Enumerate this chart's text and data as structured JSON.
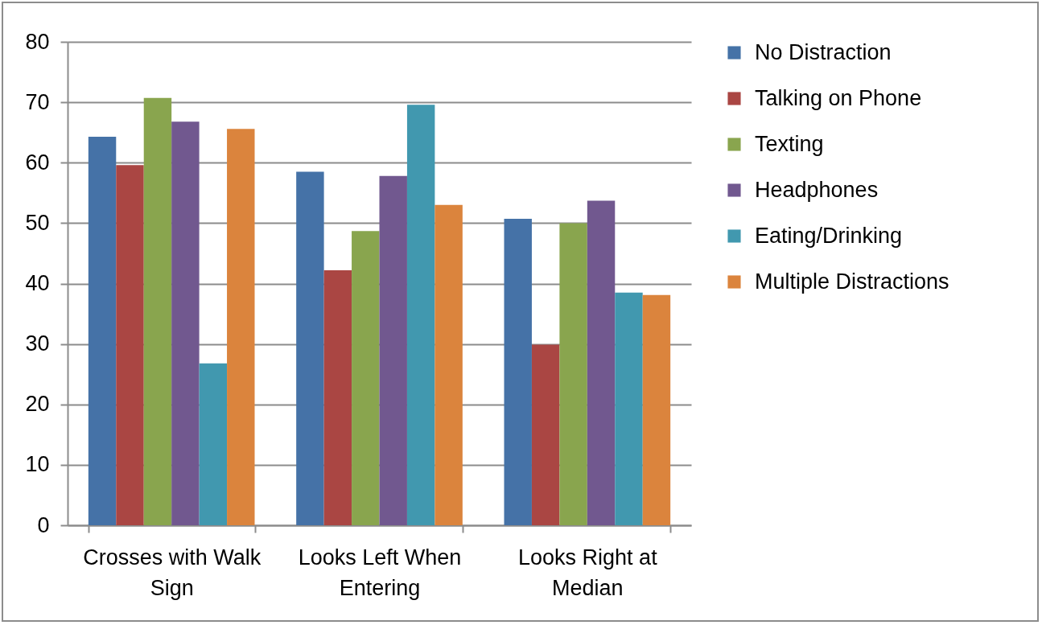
{
  "chart_data": {
    "type": "bar",
    "categories": [
      "Crosses with Walk Sign",
      "Looks Left When Entering",
      "Looks Right at Median"
    ],
    "series": [
      {
        "name": "No Distraction",
        "color": "#4572a7",
        "values": [
          64.3,
          58.5,
          50.7
        ]
      },
      {
        "name": "Talking on Phone",
        "color": "#aa4643",
        "values": [
          59.6,
          42.2,
          29.9
        ]
      },
      {
        "name": "Texting",
        "color": "#89a54e",
        "values": [
          70.7,
          48.7,
          50.0
        ]
      },
      {
        "name": "Headphones",
        "color": "#71588f",
        "values": [
          66.8,
          57.8,
          53.7
        ]
      },
      {
        "name": "Eating/Drinking",
        "color": "#4198af",
        "values": [
          26.8,
          69.6,
          38.5
        ]
      },
      {
        "name": "Multiple Distractions",
        "color": "#db843d",
        "values": [
          65.6,
          53.0,
          38.1
        ]
      }
    ],
    "ylim": [
      0,
      80
    ],
    "yticks": [
      0,
      10,
      20,
      30,
      40,
      50,
      60,
      70,
      80
    ],
    "grid": "y",
    "legend": "right"
  }
}
